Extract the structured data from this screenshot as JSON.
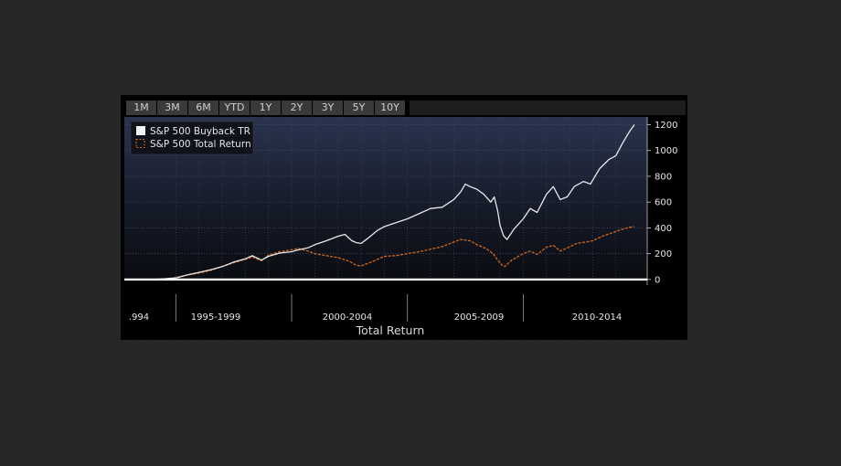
{
  "tabs": [
    "1M",
    "3M",
    "6M",
    "YTD",
    "1Y",
    "2Y",
    "3Y",
    "5Y",
    "10Y"
  ],
  "colors": {
    "series_buyback": "#e8e8e8",
    "series_total": "#d2691e",
    "plot_top": "#232c44",
    "plot_bottom": "#0a0b10",
    "panel": "#000000",
    "zero_line": "#ffffff"
  },
  "chart_data": {
    "type": "line",
    "title": "",
    "xlabel": "Total Return",
    "ylabel": "",
    "ylim": [
      -15,
      1260
    ],
    "xlim": [
      1994.0,
      2014.8
    ],
    "y_ticks": [
      0,
      200,
      400,
      600,
      800,
      1000,
      1200
    ],
    "x_categories": [
      ".994",
      "1995-1999",
      "2000-2004",
      "2005-2009",
      "2010-2014"
    ],
    "grid": true,
    "legend_position": "top-left",
    "series": [
      {
        "name": "S&P 500 Buyback TR",
        "style": "solid",
        "points": [
          [
            1994.0,
            0
          ],
          [
            1994.5,
            5
          ],
          [
            1995.0,
            12
          ],
          [
            1995.5,
            35
          ],
          [
            1996.0,
            55
          ],
          [
            1996.5,
            75
          ],
          [
            1997.0,
            100
          ],
          [
            1997.5,
            135
          ],
          [
            1998.0,
            160
          ],
          [
            1998.3,
            185
          ],
          [
            1998.7,
            150
          ],
          [
            1999.0,
            180
          ],
          [
            1999.5,
            205
          ],
          [
            2000.0,
            215
          ],
          [
            2000.3,
            230
          ],
          [
            2000.7,
            245
          ],
          [
            2001.0,
            270
          ],
          [
            2001.5,
            300
          ],
          [
            2002.0,
            335
          ],
          [
            2002.3,
            350
          ],
          [
            2002.6,
            300
          ],
          [
            2002.8,
            285
          ],
          [
            2003.0,
            280
          ],
          [
            2003.3,
            320
          ],
          [
            2003.7,
            380
          ],
          [
            2004.0,
            410
          ],
          [
            2004.5,
            440
          ],
          [
            2005.0,
            470
          ],
          [
            2005.5,
            510
          ],
          [
            2006.0,
            550
          ],
          [
            2006.5,
            560
          ],
          [
            2007.0,
            620
          ],
          [
            2007.3,
            680
          ],
          [
            2007.5,
            740
          ],
          [
            2007.7,
            720
          ],
          [
            2008.0,
            700
          ],
          [
            2008.3,
            660
          ],
          [
            2008.6,
            600
          ],
          [
            2008.75,
            640
          ],
          [
            2008.9,
            530
          ],
          [
            2009.0,
            420
          ],
          [
            2009.15,
            340
          ],
          [
            2009.3,
            310
          ],
          [
            2009.6,
            390
          ],
          [
            2010.0,
            470
          ],
          [
            2010.3,
            550
          ],
          [
            2010.6,
            520
          ],
          [
            2011.0,
            660
          ],
          [
            2011.3,
            720
          ],
          [
            2011.6,
            620
          ],
          [
            2011.9,
            640
          ],
          [
            2012.2,
            720
          ],
          [
            2012.6,
            760
          ],
          [
            2012.9,
            740
          ],
          [
            2013.3,
            860
          ],
          [
            2013.7,
            930
          ],
          [
            2014.0,
            960
          ],
          [
            2014.3,
            1060
          ],
          [
            2014.6,
            1150
          ],
          [
            2014.8,
            1200
          ]
        ]
      },
      {
        "name": "S&P 500 Total Return",
        "style": "dashed",
        "points": [
          [
            1994.0,
            0
          ],
          [
            1994.5,
            5
          ],
          [
            1995.0,
            15
          ],
          [
            1995.5,
            35
          ],
          [
            1996.0,
            50
          ],
          [
            1996.5,
            70
          ],
          [
            1997.0,
            100
          ],
          [
            1997.5,
            130
          ],
          [
            1998.0,
            155
          ],
          [
            1998.3,
            175
          ],
          [
            1998.7,
            145
          ],
          [
            1999.0,
            190
          ],
          [
            1999.5,
            215
          ],
          [
            2000.0,
            230
          ],
          [
            2000.3,
            240
          ],
          [
            2000.7,
            220
          ],
          [
            2001.0,
            200
          ],
          [
            2001.5,
            185
          ],
          [
            2002.0,
            170
          ],
          [
            2002.5,
            140
          ],
          [
            2002.8,
            110
          ],
          [
            2003.0,
            105
          ],
          [
            2003.5,
            140
          ],
          [
            2004.0,
            180
          ],
          [
            2004.5,
            185
          ],
          [
            2005.0,
            200
          ],
          [
            2005.5,
            215
          ],
          [
            2006.0,
            235
          ],
          [
            2006.5,
            255
          ],
          [
            2007.0,
            290
          ],
          [
            2007.3,
            310
          ],
          [
            2007.7,
            300
          ],
          [
            2008.0,
            270
          ],
          [
            2008.4,
            240
          ],
          [
            2008.7,
            200
          ],
          [
            2008.9,
            150
          ],
          [
            2009.1,
            110
          ],
          [
            2009.2,
            100
          ],
          [
            2009.5,
            150
          ],
          [
            2010.0,
            200
          ],
          [
            2010.3,
            220
          ],
          [
            2010.6,
            195
          ],
          [
            2011.0,
            250
          ],
          [
            2011.3,
            265
          ],
          [
            2011.6,
            220
          ],
          [
            2011.9,
            245
          ],
          [
            2012.3,
            280
          ],
          [
            2012.7,
            290
          ],
          [
            2013.0,
            300
          ],
          [
            2013.4,
            335
          ],
          [
            2013.8,
            360
          ],
          [
            2014.2,
            385
          ],
          [
            2014.6,
            405
          ],
          [
            2014.8,
            410
          ]
        ]
      }
    ]
  }
}
